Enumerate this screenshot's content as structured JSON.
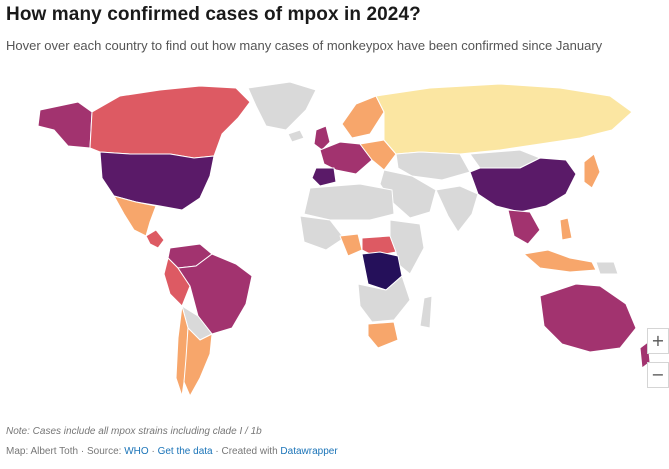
{
  "header": {
    "title": "How many confirmed cases of mpox in 2024?",
    "subtitle": "Hover over each country to find out how many cases of monkeypox have been confirmed since January"
  },
  "map": {
    "colors": {
      "no_data": "#d9d9d9",
      "level_1": "#fbe6a2",
      "level_2": "#f7a66b",
      "level_3": "#dd5a63",
      "level_4": "#a2336f",
      "level_5": "#5a1a68",
      "level_6": "#25105a"
    },
    "regions": [
      {
        "id": "alaska",
        "level": "level_4"
      },
      {
        "id": "canada",
        "level": "level_3"
      },
      {
        "id": "greenland",
        "level": "no_data"
      },
      {
        "id": "usa",
        "level": "level_5"
      },
      {
        "id": "mexico",
        "level": "level_2"
      },
      {
        "id": "central-america",
        "level": "level_3"
      },
      {
        "id": "colombia-venezuela",
        "level": "level_4"
      },
      {
        "id": "peru",
        "level": "level_3"
      },
      {
        "id": "brazil",
        "level": "level_4"
      },
      {
        "id": "bolivia-paraguay",
        "level": "no_data"
      },
      {
        "id": "chile",
        "level": "level_2"
      },
      {
        "id": "argentina",
        "level": "level_2"
      },
      {
        "id": "iceland",
        "level": "no_data"
      },
      {
        "id": "uk",
        "level": "level_4"
      },
      {
        "id": "scandinavia",
        "level": "level_2"
      },
      {
        "id": "western-europe",
        "level": "level_4"
      },
      {
        "id": "spain",
        "level": "level_5"
      },
      {
        "id": "eastern-europe",
        "level": "level_2"
      },
      {
        "id": "russia",
        "level": "level_1"
      },
      {
        "id": "kazakhstan-central-asia",
        "level": "no_data"
      },
      {
        "id": "middle-east",
        "level": "no_data"
      },
      {
        "id": "north-africa",
        "level": "no_data"
      },
      {
        "id": "west-africa",
        "level": "no_data"
      },
      {
        "id": "nigeria",
        "level": "level_2"
      },
      {
        "id": "drc",
        "level": "level_6"
      },
      {
        "id": "central-africa-neighbours",
        "level": "level_3"
      },
      {
        "id": "east-africa",
        "level": "no_data"
      },
      {
        "id": "southern-africa",
        "level": "no_data"
      },
      {
        "id": "south-africa",
        "level": "level_2"
      },
      {
        "id": "madagascar",
        "level": "no_data"
      },
      {
        "id": "india-pakistan",
        "level": "no_data"
      },
      {
        "id": "china",
        "level": "level_5"
      },
      {
        "id": "mongolia",
        "level": "no_data"
      },
      {
        "id": "japan-korea",
        "level": "level_2"
      },
      {
        "id": "southeast-asia",
        "level": "level_4"
      },
      {
        "id": "philippines",
        "level": "level_2"
      },
      {
        "id": "indonesia",
        "level": "level_2"
      },
      {
        "id": "papua-new-guinea",
        "level": "no_data"
      },
      {
        "id": "australia",
        "level": "level_4"
      },
      {
        "id": "new-zealand",
        "level": "level_4"
      }
    ]
  },
  "controls": {
    "zoom_in_label": "+",
    "zoom_out_label": "−"
  },
  "footer": {
    "note": "Note: Cases include all mpox strains including clade I / 1b",
    "credit_prefix": "Map: Albert Toth · Source: ",
    "source_link": "WHO",
    "separator_1": " · ",
    "data_link": "Get the data",
    "separator_2": " · Created with ",
    "tool_link": "Datawrapper"
  }
}
